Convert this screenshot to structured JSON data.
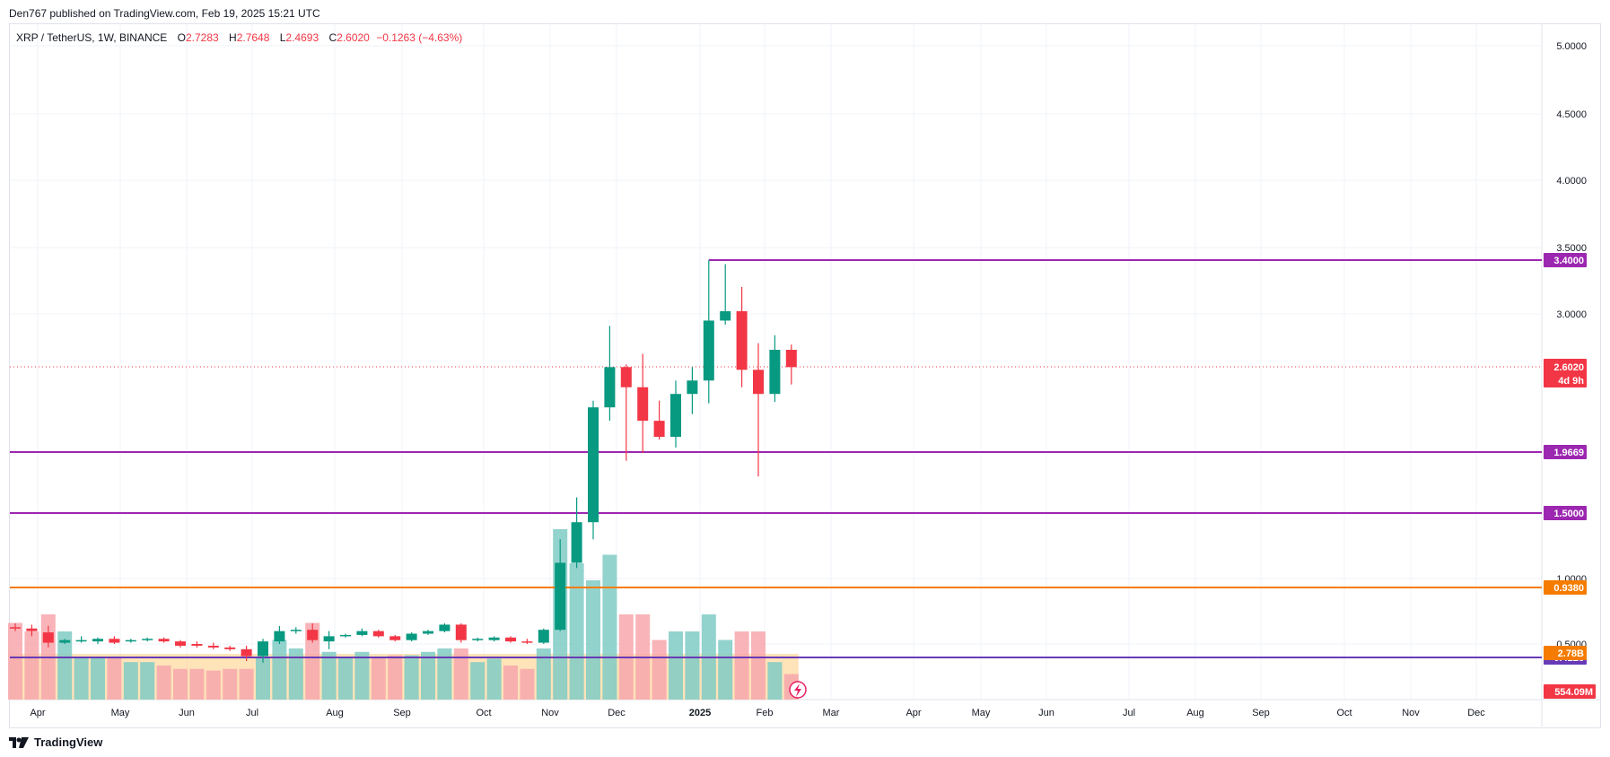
{
  "header": {
    "published": "Den767 published on TradingView.com, Feb 19, 2025 15:21 UTC"
  },
  "legend": {
    "symbol": "XRP / TetherUS, 1W, BINANCE",
    "o_label": "O",
    "o_value": "2.7283",
    "h_label": "H",
    "h_value": "2.7648",
    "l_label": "L",
    "l_value": "2.4693",
    "c_label": "C",
    "c_value": "2.6020",
    "change": "−0.1263 (−4.63%)"
  },
  "brand": {
    "name": "TradingView",
    "icon": "tradingview-logo-icon"
  },
  "colors": {
    "up": "#089981",
    "down": "#f23645",
    "level_purple": "#9c27b0",
    "level_orange": "#f57c00",
    "level_dark_purple": "#673ab7",
    "vol_up": "#80cbc4",
    "vol_down": "#f7a7ab",
    "vol_profile": "#ffcc80"
  },
  "chart_data": {
    "type": "candlestick",
    "timeframe": "1W",
    "ylim": [
      0.05,
      5.2
    ],
    "y_ticks": [
      "5.0000",
      "4.5000",
      "4.0000",
      "3.5000",
      "3.0000",
      "1.0000",
      "0.5000"
    ],
    "x_ticks": [
      "Apr",
      "May",
      "Jun",
      "Jul",
      "Aug",
      "Sep",
      "Oct",
      "Nov",
      "Dec",
      "2025",
      "Feb",
      "Mar",
      "Apr",
      "May",
      "Jun",
      "Jul",
      "Aug",
      "Sep",
      "Oct",
      "Nov",
      "Dec"
    ],
    "candles": [
      {
        "o": 0.63,
        "h": 0.66,
        "l": 0.6,
        "c": 0.62
      },
      {
        "o": 0.62,
        "h": 0.65,
        "l": 0.56,
        "c": 0.6
      },
      {
        "o": 0.59,
        "h": 0.64,
        "l": 0.48,
        "c": 0.51
      },
      {
        "o": 0.51,
        "h": 0.54,
        "l": 0.5,
        "c": 0.53
      },
      {
        "o": 0.52,
        "h": 0.56,
        "l": 0.51,
        "c": 0.53
      },
      {
        "o": 0.52,
        "h": 0.55,
        "l": 0.5,
        "c": 0.54
      },
      {
        "o": 0.54,
        "h": 0.56,
        "l": 0.5,
        "c": 0.51
      },
      {
        "o": 0.52,
        "h": 0.54,
        "l": 0.51,
        "c": 0.53
      },
      {
        "o": 0.53,
        "h": 0.55,
        "l": 0.52,
        "c": 0.54
      },
      {
        "o": 0.54,
        "h": 0.55,
        "l": 0.51,
        "c": 0.52
      },
      {
        "o": 0.52,
        "h": 0.53,
        "l": 0.48,
        "c": 0.49
      },
      {
        "o": 0.5,
        "h": 0.52,
        "l": 0.48,
        "c": 0.49
      },
      {
        "o": 0.49,
        "h": 0.51,
        "l": 0.47,
        "c": 0.48
      },
      {
        "o": 0.48,
        "h": 0.49,
        "l": 0.46,
        "c": 0.47
      },
      {
        "o": 0.47,
        "h": 0.49,
        "l": 0.4,
        "c": 0.43
      },
      {
        "o": 0.43,
        "h": 0.54,
        "l": 0.39,
        "c": 0.52
      },
      {
        "o": 0.52,
        "h": 0.64,
        "l": 0.5,
        "c": 0.6
      },
      {
        "o": 0.6,
        "h": 0.63,
        "l": 0.58,
        "c": 0.61
      },
      {
        "o": 0.61,
        "h": 0.66,
        "l": 0.51,
        "c": 0.53
      },
      {
        "o": 0.52,
        "h": 0.6,
        "l": 0.47,
        "c": 0.56
      },
      {
        "o": 0.56,
        "h": 0.58,
        "l": 0.55,
        "c": 0.57
      },
      {
        "o": 0.57,
        "h": 0.62,
        "l": 0.56,
        "c": 0.6
      },
      {
        "o": 0.6,
        "h": 0.61,
        "l": 0.55,
        "c": 0.56
      },
      {
        "o": 0.56,
        "h": 0.57,
        "l": 0.52,
        "c": 0.53
      },
      {
        "o": 0.53,
        "h": 0.59,
        "l": 0.52,
        "c": 0.58
      },
      {
        "o": 0.58,
        "h": 0.61,
        "l": 0.57,
        "c": 0.6
      },
      {
        "o": 0.6,
        "h": 0.66,
        "l": 0.59,
        "c": 0.65
      },
      {
        "o": 0.65,
        "h": 0.66,
        "l": 0.51,
        "c": 0.53
      },
      {
        "o": 0.53,
        "h": 0.55,
        "l": 0.52,
        "c": 0.54
      },
      {
        "o": 0.53,
        "h": 0.56,
        "l": 0.52,
        "c": 0.55
      },
      {
        "o": 0.55,
        "h": 0.56,
        "l": 0.51,
        "c": 0.52
      },
      {
        "o": 0.52,
        "h": 0.54,
        "l": 0.5,
        "c": 0.51
      },
      {
        "o": 0.51,
        "h": 0.62,
        "l": 0.5,
        "c": 0.61
      },
      {
        "o": 0.61,
        "h": 1.3,
        "l": 0.6,
        "c": 1.12
      },
      {
        "o": 1.12,
        "h": 1.62,
        "l": 1.08,
        "c": 1.43
      },
      {
        "o": 1.43,
        "h": 2.35,
        "l": 1.3,
        "c": 2.3
      },
      {
        "o": 2.3,
        "h": 2.91,
        "l": 2.2,
        "c": 2.6
      },
      {
        "o": 2.6,
        "h": 2.62,
        "l": 1.9,
        "c": 2.45
      },
      {
        "o": 2.45,
        "h": 2.7,
        "l": 1.96,
        "c": 2.2
      },
      {
        "o": 2.2,
        "h": 2.35,
        "l": 2.06,
        "c": 2.08
      },
      {
        "o": 2.08,
        "h": 2.5,
        "l": 2.0,
        "c": 2.4
      },
      {
        "o": 2.4,
        "h": 2.6,
        "l": 2.25,
        "c": 2.5
      },
      {
        "o": 2.5,
        "h": 3.4,
        "l": 2.33,
        "c": 2.95
      },
      {
        "o": 2.95,
        "h": 3.37,
        "l": 2.92,
        "c": 3.02
      },
      {
        "o": 3.02,
        "h": 3.2,
        "l": 2.45,
        "c": 2.58
      },
      {
        "o": 2.58,
        "h": 2.78,
        "l": 1.78,
        "c": 2.4
      },
      {
        "o": 2.4,
        "h": 2.84,
        "l": 2.34,
        "c": 2.73
      },
      {
        "o": 2.73,
        "h": 2.77,
        "l": 2.47,
        "c": 2.6
      }
    ],
    "volume": [
      0.45,
      0.4,
      0.5,
      0.4,
      0.25,
      0.25,
      0.25,
      0.22,
      0.22,
      0.2,
      0.18,
      0.18,
      0.17,
      0.18,
      0.18,
      0.25,
      0.35,
      0.3,
      0.45,
      0.28,
      0.25,
      0.28,
      0.25,
      0.26,
      0.26,
      0.28,
      0.3,
      0.3,
      0.22,
      0.24,
      0.2,
      0.18,
      0.3,
      1.0,
      0.8,
      0.7,
      0.85,
      0.5,
      0.5,
      0.35,
      0.4,
      0.4,
      0.5,
      0.35,
      0.4,
      0.4,
      0.22,
      0.15
    ],
    "last_price": "2.6020",
    "countdown": "4d 9h",
    "levels": [
      {
        "value": 3.4,
        "label": "3.4000",
        "color": "#9c27b0",
        "from_index": 42
      },
      {
        "value": 1.9669,
        "label": "1.9669",
        "color": "#9c27b0",
        "from_index": 0
      },
      {
        "value": 1.5,
        "label": "1.5000",
        "color": "#9c27b0",
        "from_index": 0
      },
      {
        "value": 0.938,
        "label": "0.9380",
        "color": "#f57c00",
        "from_index": 0
      },
      {
        "value": 0.4226,
        "label": "0.4226",
        "color": "#673ab7",
        "from_index": 0
      }
    ],
    "volume_tags": [
      {
        "label": "2.78B",
        "color": "#f57c00"
      },
      {
        "label": "554.09M",
        "color": "#f23645"
      }
    ]
  }
}
